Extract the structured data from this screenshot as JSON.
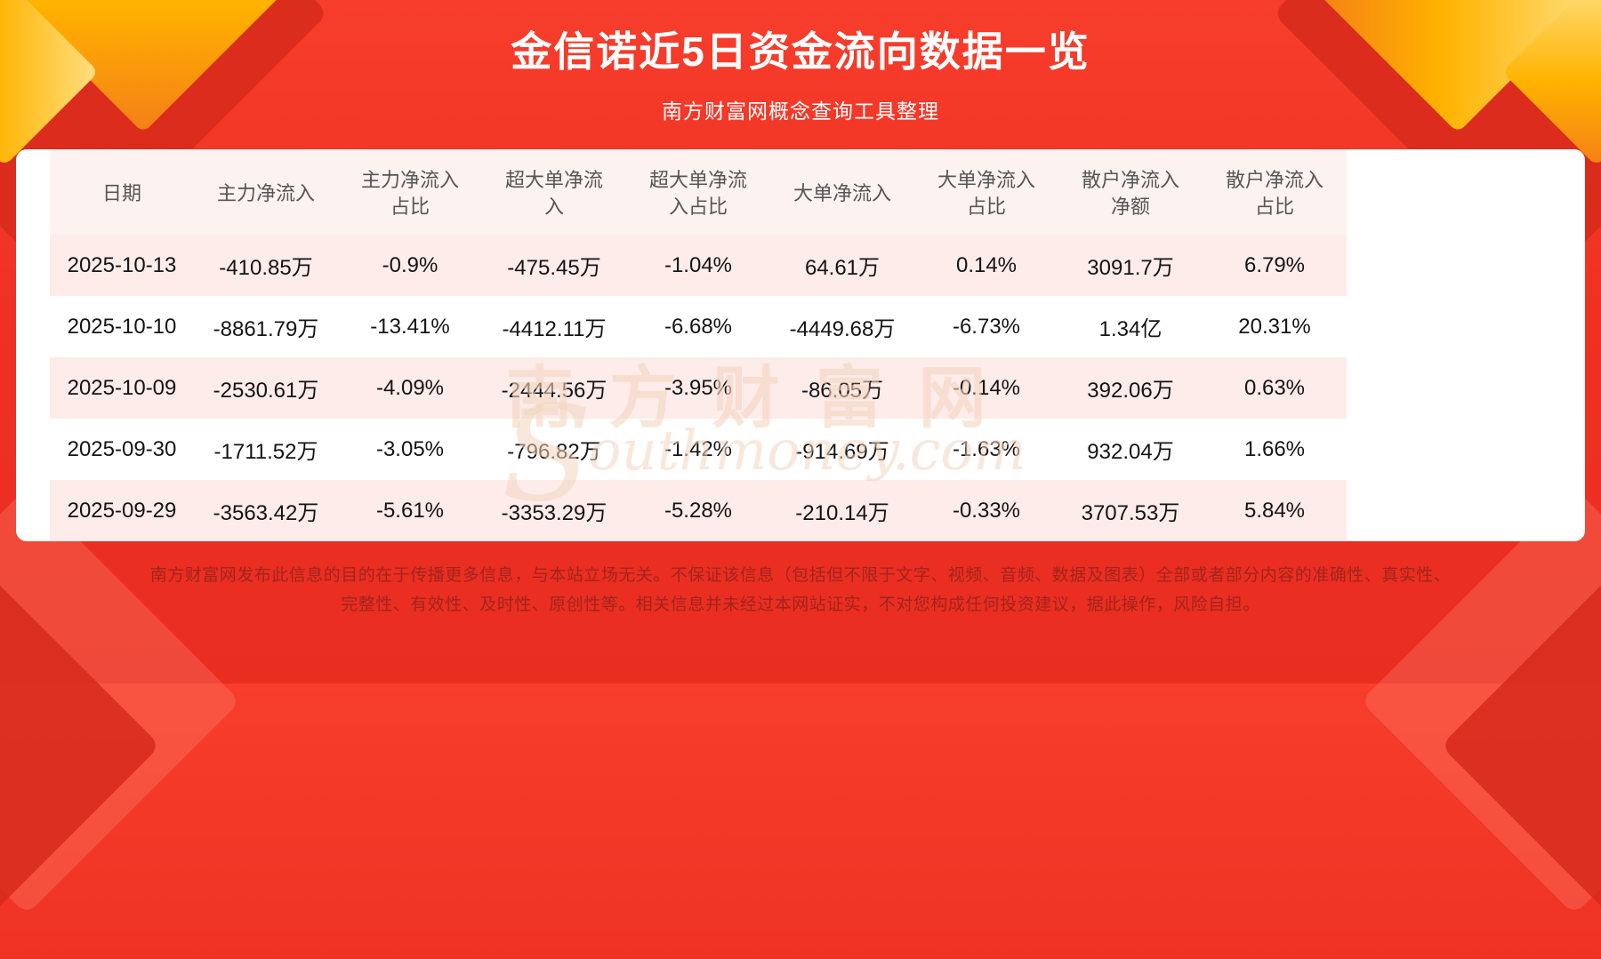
{
  "header": {
    "title": "金信诺近5日资金流向数据一览",
    "subtitle": "南方财富网概念查询工具整理"
  },
  "table": {
    "headers": [
      "日期",
      "主力净流入",
      "主力净流入占比",
      "超大单净流入",
      "超大单净流入占比",
      "大单净流入",
      "大单净流入占比",
      "散户净流入净额",
      "散户净流入占比"
    ],
    "rows": [
      [
        "2025-10-13",
        "-410.85万",
        "-0.9%",
        "-475.45万",
        "-1.04%",
        "64.61万",
        "0.14%",
        "3091.7万",
        "6.79%"
      ],
      [
        "2025-10-10",
        "-8861.79万",
        "-13.41%",
        "-4412.11万",
        "-6.68%",
        "-4449.68万",
        "-6.73%",
        "1.34亿",
        "20.31%"
      ],
      [
        "2025-10-09",
        "-2530.61万",
        "-4.09%",
        "-2444.56万",
        "-3.95%",
        "-86.05万",
        "-0.14%",
        "392.06万",
        "0.63%"
      ],
      [
        "2025-09-30",
        "-1711.52万",
        "-3.05%",
        "-796.82万",
        "-1.42%",
        "-914.69万",
        "-1.63%",
        "932.04万",
        "1.66%"
      ],
      [
        "2025-09-29",
        "-3563.42万",
        "-5.61%",
        "-3353.29万",
        "-5.28%",
        "-210.14万",
        "-0.33%",
        "3707.53万",
        "5.84%"
      ]
    ]
  },
  "chart_data": {
    "type": "table",
    "title": "金信诺近5日资金流向数据一览",
    "columns": [
      "日期",
      "主力净流入",
      "主力净流入占比",
      "超大单净流入",
      "超大单净流入占比",
      "大单净流入",
      "大单净流入占比",
      "散户净流入净额",
      "散户净流入占比"
    ],
    "rows": [
      [
        "2025-10-13",
        "-410.85万",
        "-0.9%",
        "-475.45万",
        "-1.04%",
        "64.61万",
        "0.14%",
        "3091.7万",
        "6.79%"
      ],
      [
        "2025-10-10",
        "-8861.79万",
        "-13.41%",
        "-4412.11万",
        "-6.68%",
        "-4449.68万",
        "-6.73%",
        "1.34亿",
        "20.31%"
      ],
      [
        "2025-10-09",
        "-2530.61万",
        "-4.09%",
        "-2444.56万",
        "-3.95%",
        "-86.05万",
        "-0.14%",
        "392.06万",
        "0.63%"
      ],
      [
        "2025-09-30",
        "-1711.52万",
        "-3.05%",
        "-796.82万",
        "-1.42%",
        "-914.69万",
        "-1.63%",
        "932.04万",
        "1.66%"
      ],
      [
        "2025-09-29",
        "-3563.42万",
        "-5.61%",
        "-3353.29万",
        "-5.28%",
        "-210.14万",
        "-0.33%",
        "3707.53万",
        "5.84%"
      ]
    ]
  },
  "watermark": {
    "text_cn": "南方财富网",
    "initial": "S",
    "text_en": "outhmoney.com"
  },
  "footer": {
    "line1": "南方财富网发布此信息的目的在于传播更多信息，与本站立场无关。不保证该信息（包括但不限于文字、视频、音频、数据及图表）全部或者部分内容的准确性、真实性、",
    "line2": "完整性、有效性、及时性、原创性等。相关信息并未经过本网站证实，不对您构成任何投资建议，据此操作，风险自担。"
  },
  "colors": {
    "background_red": "#ee3123",
    "accent_gold": "#ffb300",
    "card_background": "#ffffff",
    "row_alternate": "#fdecea",
    "footer_text": "#a2241b"
  }
}
